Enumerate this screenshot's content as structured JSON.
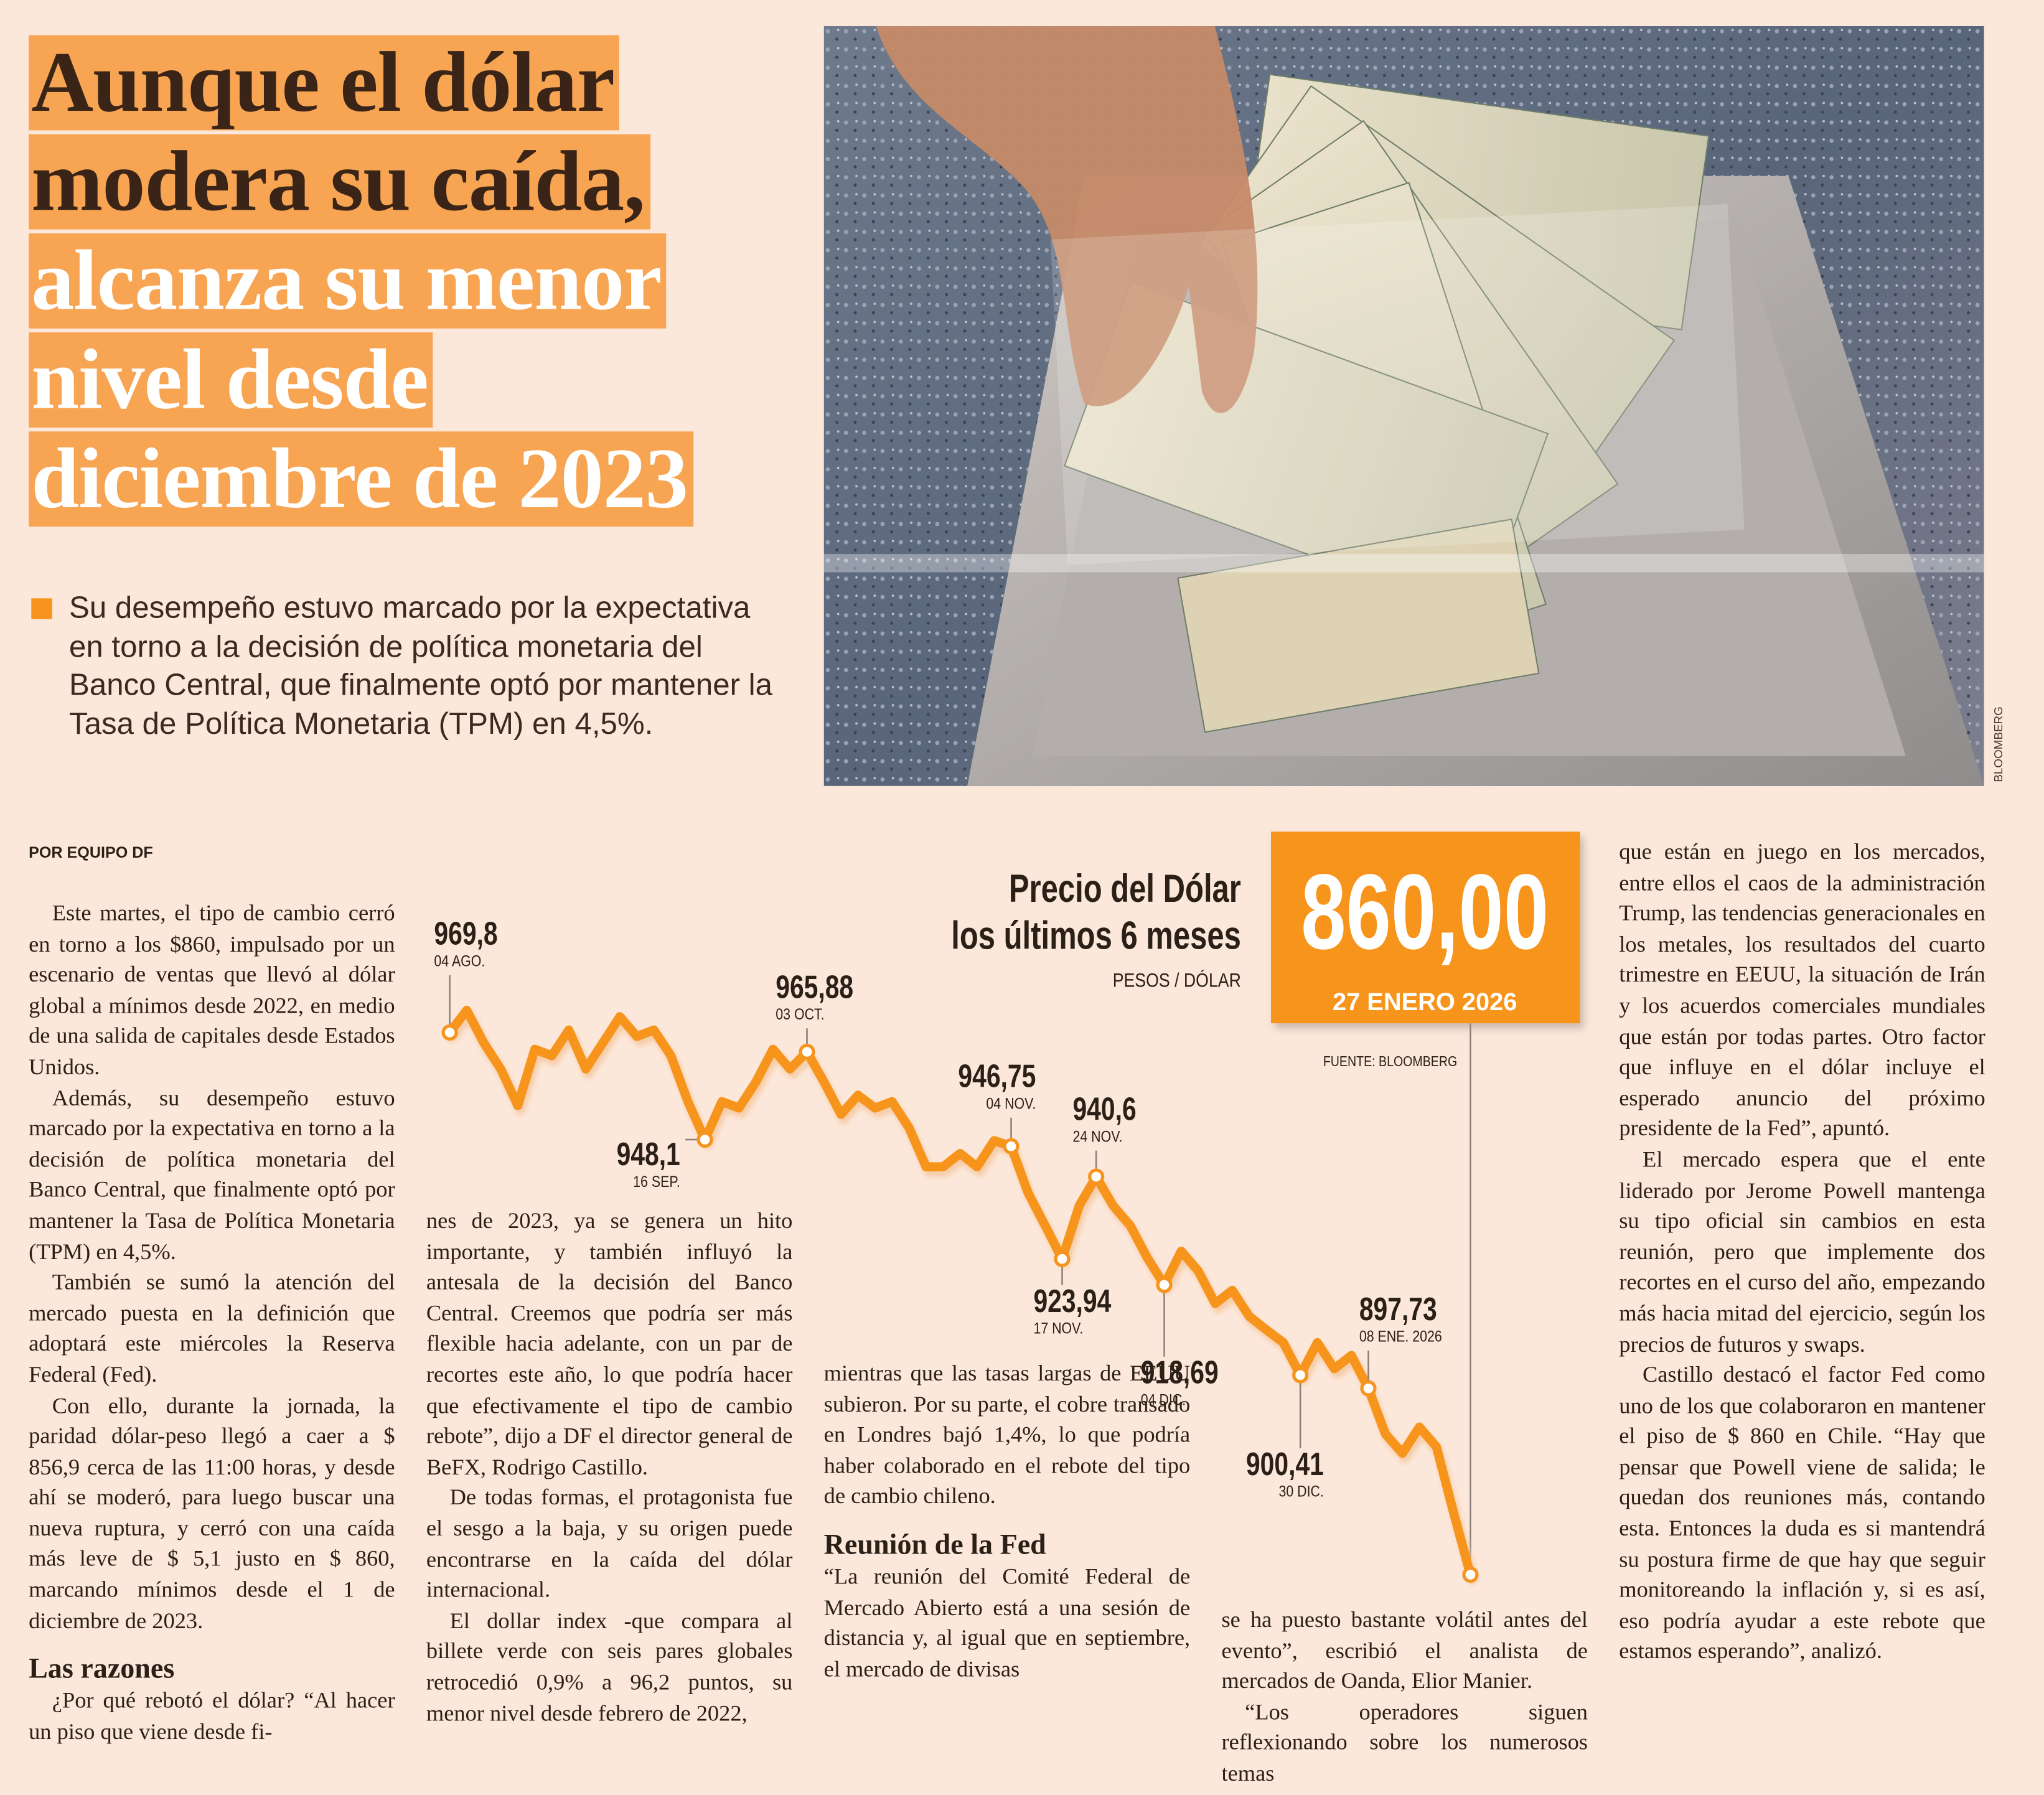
{
  "headline": [
    "Aunque el dólar",
    "modera su caída,",
    "alcanza su menor",
    "nivel desde",
    "diciembre de 2023"
  ],
  "deck": "Su desempeño estuvo marcado por la expectativa en torno a la decisión de política monetaria del Banco Central, que finalmente optó por mantener la Tasa de Política Monetaria (TPM) en 4,5%.",
  "photo_credit": "BLOOMBERG",
  "byline": "POR EQUIPO DF",
  "columns": [
    [
      {
        "text": "Este martes, el tipo de cambio cerró en torno a los $860, impulsado por un escenario de ventas que llevó al dólar global a mínimos desde 2022, en medio de una salida de capitales desde Estados Unidos."
      },
      {
        "text": "Además, su desempeño estuvo marcado por la expectativa en torno a la decisión de política monetaria del Banco Central, que finalmente optó por mantener la Tasa de Política Monetaria (TPM) en 4,5%."
      },
      {
        "text": "También se sumó la atención del mercado puesta en la definición que adoptará este miércoles la Reserva Federal (Fed)."
      },
      {
        "text": "Con ello, durante la jornada, la paridad dólar-peso llegó a caer a $ 856,9 cerca de las 11:00 horas, y desde ahí se moderó, para luego buscar una nueva ruptura, y cerró con una caída más leve de $ 5,1 justo en $ 860, marcando mínimos desde el 1 de diciembre de 2023."
      },
      {
        "subhead": "Las razones"
      },
      {
        "text": "¿Por qué rebotó el dólar? “Al hacer un piso que viene desde fi-"
      }
    ],
    [
      {
        "text": "nes de 2023, ya se genera un hito importante, y también influyó la antesala de la decisión del Banco Central. Creemos que podría ser más flexible hacia adelante, con un par de recortes este año, lo que podría hacer que efectivamente el tipo de cambio rebote”, dijo a DF el director general de BeFX, Rodrigo Castillo."
      },
      {
        "text": "De todas formas, el protagonista fue el sesgo a la baja, y su origen puede encontrarse en la caída del dólar internacional."
      },
      {
        "text": "El dollar index -que compara al billete verde con seis pares globales retrocedió 0,9% a 96,2 puntos, su menor nivel desde febrero de 2022,"
      }
    ],
    [
      {
        "text": "mientras que las tasas largas de EEUU subieron. Por su parte, el cobre transado en Londres bajó 1,4%, lo que podría haber colaborado en el rebote del tipo de cambio chileno."
      },
      {
        "subhead": "Reunión de la Fed"
      },
      {
        "text": "“La reunión del Comité Federal de Mercado Abierto está a una sesión de distancia y, al igual que en septiembre, el mercado de divisas"
      }
    ],
    [
      {
        "text": "se ha puesto bastante volátil antes del evento”, escribió el analista de mercados de Oanda, Elior Manier."
      },
      {
        "text": "“Los operadores siguen reflexionando sobre los numerosos temas"
      }
    ],
    [
      {
        "text": "que están en juego en los mercados, entre ellos el caos de la administración Trump, las tendencias generacionales en los metales, los resultados del cuarto trimestre en EEUU, la situación de Irán y los acuerdos comerciales mundiales que están por todas partes. Otro factor que influye en el dólar incluye el esperado anuncio del próximo presidente de la Fed”, apuntó."
      },
      {
        "text": "El mercado espera que el ente liderado por Jerome Powell mantenga su tipo oficial sin cambios en esta reunión, pero que implemente dos recortes en el curso del año, empezando más hacia mitad del ejercicio, según los precios de futuros y swaps."
      },
      {
        "text": "Castillo destacó el factor Fed como uno de los que colaboraron en mantener el piso de $ 860 en Chile. “Hay que pensar que Powell viene de salida; le quedan dos reuniones más, contando esta. Entonces la duda es si mantendrá su postura firme de que hay que seguir monitoreando la inflación y, si es así, eso podría ayudar a este rebote que estamos esperando”, analizó."
      }
    ]
  ],
  "chart_data": {
    "type": "line",
    "title": [
      "Precio del Dólar",
      "los últimos 6 meses"
    ],
    "subtitle": "PESOS / DÓLAR",
    "source": "FUENTE: BLOOMBERG",
    "color": "#f7941d",
    "categories": [
      "04 AGO.",
      null,
      null,
      null,
      null,
      null,
      null,
      null,
      null,
      null,
      null,
      null,
      null,
      null,
      null,
      "16 SEP.",
      null,
      null,
      null,
      null,
      null,
      "03 OCT.",
      null,
      null,
      null,
      null,
      null,
      null,
      null,
      null,
      null,
      null,
      null,
      "04 NOV.",
      null,
      null,
      "17 NOV.",
      null,
      "24 NOV.",
      null,
      null,
      null,
      "04 DIC.",
      null,
      null,
      null,
      null,
      null,
      null,
      null,
      "30 DIC.",
      null,
      null,
      null,
      "08 ENE. 2026",
      null,
      null,
      null,
      null,
      null,
      "27 ENERO 2026"
    ],
    "values": [
      969.8,
      974.3,
      967.7,
      962.4,
      955.0,
      966.4,
      965.1,
      970.3,
      962.4,
      967.7,
      973.0,
      969.0,
      970.3,
      965.1,
      955.8,
      948.1,
      955.8,
      954.5,
      959.8,
      966.4,
      962.4,
      965.88,
      959.8,
      953.2,
      957.1,
      954.5,
      955.8,
      950.5,
      942.6,
      942.6,
      945.3,
      942.6,
      947.9,
      946.75,
      937.3,
      930.7,
      923.94,
      934.7,
      940.6,
      934.7,
      930.7,
      924.2,
      918.69,
      925.5,
      921.5,
      914.9,
      917.6,
      912.3,
      909.6,
      907.0,
      900.41,
      907.0,
      901.7,
      904.4,
      897.73,
      888.5,
      884.6,
      889.9,
      885.9,
      872.7,
      860
    ],
    "value_labels": [
      "969,8",
      null,
      null,
      null,
      null,
      null,
      null,
      null,
      null,
      null,
      null,
      null,
      null,
      null,
      null,
      "948,1",
      null,
      null,
      null,
      null,
      null,
      "965,88",
      null,
      null,
      null,
      null,
      null,
      null,
      null,
      null,
      null,
      null,
      null,
      "946,75",
      null,
      null,
      "923,94",
      null,
      "940,6",
      null,
      null,
      null,
      "918,69",
      null,
      null,
      null,
      null,
      null,
      null,
      null,
      "900,41",
      null,
      null,
      null,
      "897,73",
      null,
      null,
      null,
      null,
      null,
      "860,00"
    ]
  }
}
